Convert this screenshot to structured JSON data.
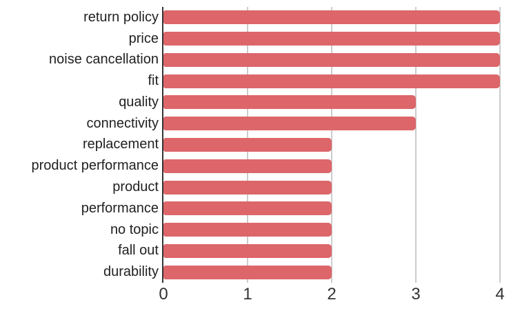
{
  "chart_data": {
    "type": "bar",
    "orientation": "horizontal",
    "title": "",
    "xlabel": "",
    "ylabel": "",
    "categories": [
      "return policy",
      "price",
      "noise cancellation",
      "fit",
      "quality",
      "connectivity",
      "replacement",
      "product performance",
      "product",
      "performance",
      "no topic",
      "fall out",
      "durability"
    ],
    "values": [
      4,
      4,
      4,
      4,
      3,
      3,
      2,
      2,
      2,
      2,
      2,
      2,
      2
    ],
    "xlim": [
      0,
      4
    ],
    "x_ticks": [
      "0",
      "1",
      "2",
      "3",
      "4"
    ],
    "grid": "vertical-gridlines-on",
    "legend": "none",
    "colors": {
      "bar": "#dc666a",
      "axis_line": "#333333",
      "gridline": "#cccccc",
      "category_label_text": "#212121",
      "tick_label_text": "#333333",
      "background": "#ffffff"
    }
  }
}
